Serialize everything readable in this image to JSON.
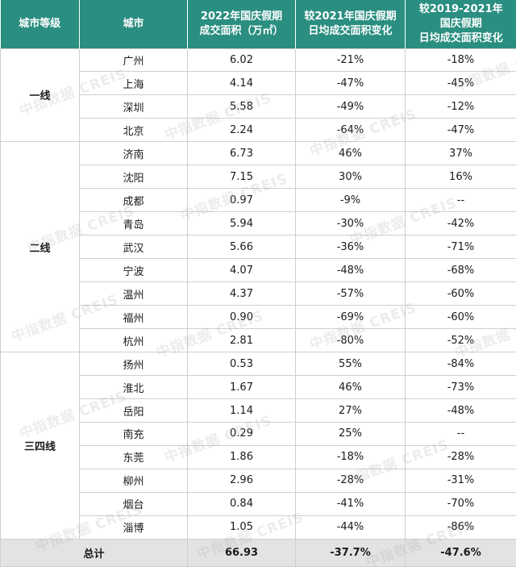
{
  "header": {
    "tier": "城市等级",
    "city": "城市",
    "area_line1": "2022年国庆假期",
    "area_line2": "成交面积（万㎡）",
    "yoy_line1": "较2021年国庆假期",
    "yoy_line2": "日均成交面积变化",
    "vs1921_line1": "较2019-2021年",
    "vs1921_line2": "国庆假期",
    "vs1921_line3": "日均成交面积变化"
  },
  "groups": [
    {
      "tier": "一线",
      "rows": [
        {
          "city": "广州",
          "area": "6.02",
          "chg2021": "-21%",
          "chg19_21": "-18%"
        },
        {
          "city": "上海",
          "area": "4.14",
          "chg2021": "-47%",
          "chg19_21": "-45%"
        },
        {
          "city": "深圳",
          "area": "5.58",
          "chg2021": "-49%",
          "chg19_21": "-12%"
        },
        {
          "city": "北京",
          "area": "2.24",
          "chg2021": "-64%",
          "chg19_21": "-47%"
        }
      ]
    },
    {
      "tier": "二线",
      "rows": [
        {
          "city": "济南",
          "area": "6.73",
          "chg2021": "46%",
          "chg19_21": "37%"
        },
        {
          "city": "沈阳",
          "area": "7.15",
          "chg2021": "30%",
          "chg19_21": "16%"
        },
        {
          "city": "成都",
          "area": "0.97",
          "chg2021": "-9%",
          "chg19_21": "--"
        },
        {
          "city": "青岛",
          "area": "5.94",
          "chg2021": "-30%",
          "chg19_21": "-42%"
        },
        {
          "city": "武汉",
          "area": "5.66",
          "chg2021": "-36%",
          "chg19_21": "-71%"
        },
        {
          "city": "宁波",
          "area": "4.07",
          "chg2021": "-48%",
          "chg19_21": "-68%"
        },
        {
          "city": "温州",
          "area": "4.37",
          "chg2021": "-57%",
          "chg19_21": "-60%"
        },
        {
          "city": "福州",
          "area": "0.90",
          "chg2021": "-69%",
          "chg19_21": "-60%"
        },
        {
          "city": "杭州",
          "area": "2.81",
          "chg2021": "-80%",
          "chg19_21": "-52%"
        }
      ]
    },
    {
      "tier": "三四线",
      "rows": [
        {
          "city": "扬州",
          "area": "0.53",
          "chg2021": "55%",
          "chg19_21": "-84%"
        },
        {
          "city": "淮北",
          "area": "1.67",
          "chg2021": "46%",
          "chg19_21": "-73%"
        },
        {
          "city": "岳阳",
          "area": "1.14",
          "chg2021": "27%",
          "chg19_21": "-48%"
        },
        {
          "city": "南充",
          "area": "0.29",
          "chg2021": "25%",
          "chg19_21": "--"
        },
        {
          "city": "东莞",
          "area": "1.86",
          "chg2021": "-18%",
          "chg19_21": "-28%"
        },
        {
          "city": "柳州",
          "area": "2.96",
          "chg2021": "-28%",
          "chg19_21": "-31%"
        },
        {
          "city": "烟台",
          "area": "0.84",
          "chg2021": "-41%",
          "chg19_21": "-70%"
        },
        {
          "city": "淄博",
          "area": "1.05",
          "chg2021": "-44%",
          "chg19_21": "-86%"
        }
      ]
    }
  ],
  "total": {
    "label": "总计",
    "area": "66.93",
    "chg2021": "-37.7%",
    "chg19_21": "-47.6%"
  },
  "watermark": "中指数据 CREIS",
  "colors": {
    "header_bg": "#2a8e80",
    "total_bg": "#e3e3e3"
  }
}
